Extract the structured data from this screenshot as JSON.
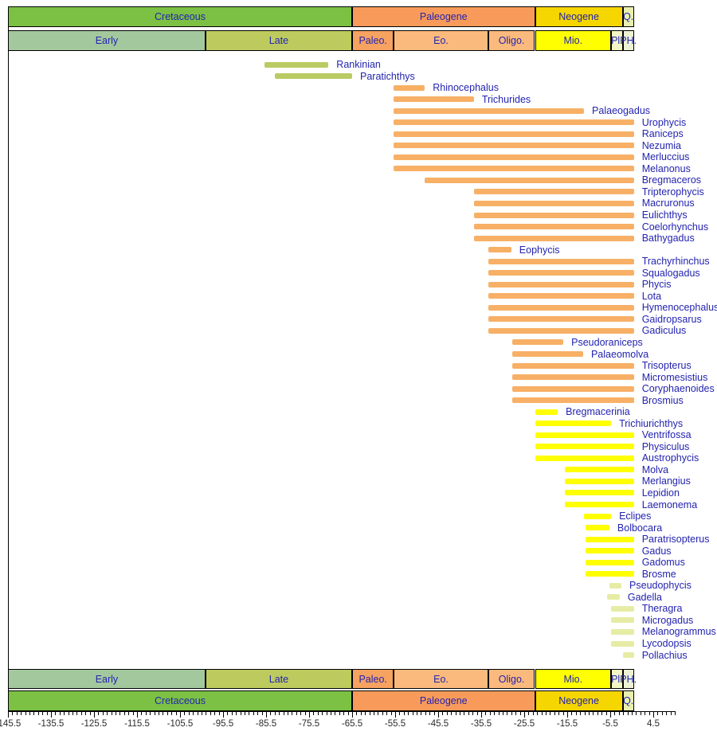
{
  "chart_data": {
    "type": "bar",
    "subtype": "stratigraphic-range-chart",
    "orientation": "horizontal",
    "title": "",
    "x_axis": {
      "unit": "Ma",
      "min": -145.5,
      "max": 9.5,
      "major_tick_step": 10,
      "minor_tick_step": 1,
      "major_tick_labels": [
        "-145.5",
        "-135.5",
        "-125.5",
        "-115.5",
        "-105.5",
        "-95.5",
        "-85.5",
        "-75.5",
        "-65.5",
        "-55.5",
        "-45.5",
        "-35.5",
        "-25.5",
        "-15.5",
        "-5.5",
        "4.5"
      ]
    },
    "periods": [
      {
        "label": "Cretaceous",
        "from": -145.5,
        "to": -65.5,
        "color": "#7cc143"
      },
      {
        "label": "Paleogene",
        "from": -65.5,
        "to": -23.0,
        "color": "#f89b5a"
      },
      {
        "label": "Neogene",
        "from": -23.0,
        "to": -2.6,
        "color": "#f6d600"
      },
      {
        "label": "Q.",
        "from": -2.6,
        "to": 0,
        "color": "#e9efae"
      }
    ],
    "epochs": [
      {
        "label": "Early",
        "from": -145.5,
        "to": -99.6,
        "color": "#a4c89d"
      },
      {
        "label": "Late",
        "from": -99.6,
        "to": -65.5,
        "color": "#bdcb5e"
      },
      {
        "label": "Paleo.",
        "from": -65.5,
        "to": -55.8,
        "color": "#f6a261"
      },
      {
        "label": "Eo.",
        "from": -55.8,
        "to": -33.9,
        "color": "#fbba7d"
      },
      {
        "label": "Oligo.",
        "from": -33.9,
        "to": -23.0,
        "color": "#fbba7d"
      },
      {
        "label": "Mio.",
        "from": -23.0,
        "to": -5.3,
        "color": "#ffff00"
      },
      {
        "label": "Pl.",
        "from": -5.3,
        "to": -2.6,
        "color": "#f3f6c4"
      },
      {
        "label": "PH.",
        "from": -2.6,
        "to": 0,
        "color": "#edf2d4"
      }
    ],
    "group_colors": {
      "cretaceous": "#b9cb62",
      "paleogene": "#f7b066",
      "neogene": "#ffff00",
      "plio-quaternary": "#e6eca4"
    },
    "taxa": [
      {
        "name": "Rankinian",
        "from": -85.8,
        "to": -71.0,
        "group": "cretaceous"
      },
      {
        "name": "Paratichthys",
        "from": -83.5,
        "to": -65.5,
        "group": "cretaceous"
      },
      {
        "name": "Rhinocephalus",
        "from": -55.8,
        "to": -48.6,
        "group": "paleogene"
      },
      {
        "name": "Trichurides",
        "from": -55.8,
        "to": -37.2,
        "group": "paleogene"
      },
      {
        "name": "Palaeogadus",
        "from": -55.8,
        "to": -11.6,
        "group": "paleogene"
      },
      {
        "name": "Urophycis",
        "from": -55.8,
        "to": 0,
        "group": "paleogene"
      },
      {
        "name": "Raniceps",
        "from": -55.8,
        "to": 0,
        "group": "paleogene"
      },
      {
        "name": "Nezumia",
        "from": -55.8,
        "to": 0,
        "group": "paleogene"
      },
      {
        "name": "Merluccius",
        "from": -55.8,
        "to": 0,
        "group": "paleogene"
      },
      {
        "name": "Melanonus",
        "from": -55.8,
        "to": 0,
        "group": "paleogene"
      },
      {
        "name": "Bregmaceros",
        "from": -48.6,
        "to": 0,
        "group": "paleogene"
      },
      {
        "name": "Tripterophycis",
        "from": -37.2,
        "to": 0,
        "group": "paleogene"
      },
      {
        "name": "Macruronus",
        "from": -37.2,
        "to": 0,
        "group": "paleogene"
      },
      {
        "name": "Eulichthys",
        "from": -37.2,
        "to": 0,
        "group": "paleogene"
      },
      {
        "name": "Coelorhynchus",
        "from": -37.2,
        "to": 0,
        "group": "paleogene"
      },
      {
        "name": "Bathygadus",
        "from": -37.2,
        "to": 0,
        "group": "paleogene"
      },
      {
        "name": "Eophycis",
        "from": -33.9,
        "to": -28.5,
        "group": "paleogene"
      },
      {
        "name": "Trachyrhinchus",
        "from": -33.9,
        "to": 0,
        "group": "paleogene"
      },
      {
        "name": "Squalogadus",
        "from": -33.9,
        "to": 0,
        "group": "paleogene"
      },
      {
        "name": "Phycis",
        "from": -33.9,
        "to": 0,
        "group": "paleogene"
      },
      {
        "name": "Lota",
        "from": -33.9,
        "to": 0,
        "group": "paleogene"
      },
      {
        "name": "Hymenocephalus",
        "from": -33.9,
        "to": 0,
        "group": "paleogene"
      },
      {
        "name": "Gaidropsarus",
        "from": -33.9,
        "to": 0,
        "group": "paleogene"
      },
      {
        "name": "Gadiculus",
        "from": -33.9,
        "to": 0,
        "group": "paleogene"
      },
      {
        "name": "Pseudoraniceps",
        "from": -28.3,
        "to": -16.4,
        "group": "paleogene"
      },
      {
        "name": "Palaeomolva",
        "from": -28.3,
        "to": -11.8,
        "group": "paleogene"
      },
      {
        "name": "Trisopterus",
        "from": -28.3,
        "to": 0,
        "group": "paleogene"
      },
      {
        "name": "Micromesistius",
        "from": -28.3,
        "to": 0,
        "group": "paleogene"
      },
      {
        "name": "Coryphaenoides",
        "from": -28.3,
        "to": 0,
        "group": "paleogene"
      },
      {
        "name": "Brosmius",
        "from": -28.3,
        "to": 0,
        "group": "paleogene"
      },
      {
        "name": "Bregmacerinia",
        "from": -23.0,
        "to": -17.7,
        "group": "neogene"
      },
      {
        "name": "Trichiurichthys",
        "from": -23.0,
        "to": -5.3,
        "group": "neogene"
      },
      {
        "name": "Ventrifossa",
        "from": -23.0,
        "to": 0,
        "group": "neogene"
      },
      {
        "name": "Physiculus",
        "from": -23.0,
        "to": 0,
        "group": "neogene"
      },
      {
        "name": "Austrophycis",
        "from": -23.0,
        "to": 0,
        "group": "neogene"
      },
      {
        "name": "Molva",
        "from": -16.0,
        "to": 0,
        "group": "neogene"
      },
      {
        "name": "Merlangius",
        "from": -16.0,
        "to": 0,
        "group": "neogene"
      },
      {
        "name": "Lepidion",
        "from": -16.0,
        "to": 0,
        "group": "neogene"
      },
      {
        "name": "Laemonema",
        "from": -16.0,
        "to": 0,
        "group": "neogene"
      },
      {
        "name": "Eclipes",
        "from": -11.6,
        "to": -5.3,
        "group": "neogene"
      },
      {
        "name": "Bolbocara",
        "from": -11.2,
        "to": -5.7,
        "group": "neogene"
      },
      {
        "name": "Paratrisopterus",
        "from": -11.2,
        "to": 0,
        "group": "neogene"
      },
      {
        "name": "Gadus",
        "from": -11.2,
        "to": 0,
        "group": "neogene"
      },
      {
        "name": "Gadomus",
        "from": -11.2,
        "to": 0,
        "group": "neogene"
      },
      {
        "name": "Brosme",
        "from": -11.2,
        "to": 0,
        "group": "neogene"
      },
      {
        "name": "Pseudophycis",
        "from": -5.7,
        "to": -2.9,
        "group": "plio-quaternary"
      },
      {
        "name": "Gadella",
        "from": -6.2,
        "to": -3.3,
        "group": "plio-quaternary"
      },
      {
        "name": "Theragra",
        "from": -5.3,
        "to": 0,
        "group": "plio-quaternary"
      },
      {
        "name": "Microgadus",
        "from": -5.3,
        "to": 0,
        "group": "plio-quaternary"
      },
      {
        "name": "Melanogrammus",
        "from": -5.3,
        "to": 0,
        "group": "plio-quaternary"
      },
      {
        "name": "Lycodopsis",
        "from": -5.3,
        "to": 0,
        "group": "plio-quaternary"
      },
      {
        "name": "Pollachius",
        "from": -2.6,
        "to": 0,
        "group": "plio-quaternary"
      }
    ],
    "legend_position": "none",
    "grid": false
  },
  "style": {
    "label_color": "#2323b0",
    "axis_text_color": "#2b2b2b",
    "frame_color": "#000000"
  }
}
